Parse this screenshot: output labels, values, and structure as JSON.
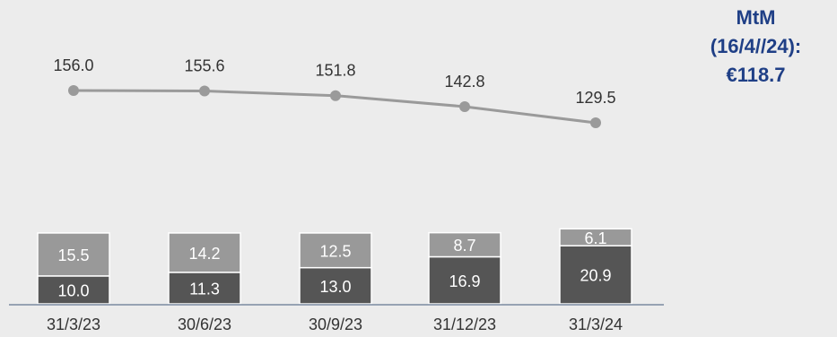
{
  "mtm_note": {
    "line1": "MtM",
    "line2": "(16/4//24):",
    "line3": "€118.7"
  },
  "colors": {
    "background": "#ececec",
    "bar_bottom": "#555555",
    "bar_top": "#999999",
    "line": "#9a9a9a",
    "axis": "#7a8aa0",
    "mtm_text": "#1f3f86"
  },
  "chart_data": {
    "type": "bar",
    "stacked": true,
    "categories": [
      "31/3/23",
      "30/6/23",
      "30/9/23",
      "31/12/23",
      "31/3/24"
    ],
    "series": [
      {
        "values": [
          10.0,
          11.3,
          13.0,
          16.9,
          20.9
        ],
        "color": "#555555"
      },
      {
        "values": [
          15.5,
          14.2,
          12.5,
          8.7,
          6.1
        ],
        "color": "#999999"
      }
    ],
    "line_series": {
      "values": [
        156.0,
        155.6,
        151.8,
        142.8,
        129.5
      ],
      "labels": [
        "156.0",
        "155.6",
        "151.8",
        "142.8",
        "129.5"
      ],
      "color": "#9a9a9a"
    },
    "bar_labels": {
      "bottom": [
        "10.0",
        "11.3",
        "13.0",
        "16.9",
        "20.9"
      ],
      "top": [
        "15.5",
        "14.2",
        "12.5",
        "8.7",
        "6.1"
      ]
    },
    "title": "",
    "xlabel": "",
    "ylabel": "",
    "grid": false,
    "legend": "none"
  }
}
